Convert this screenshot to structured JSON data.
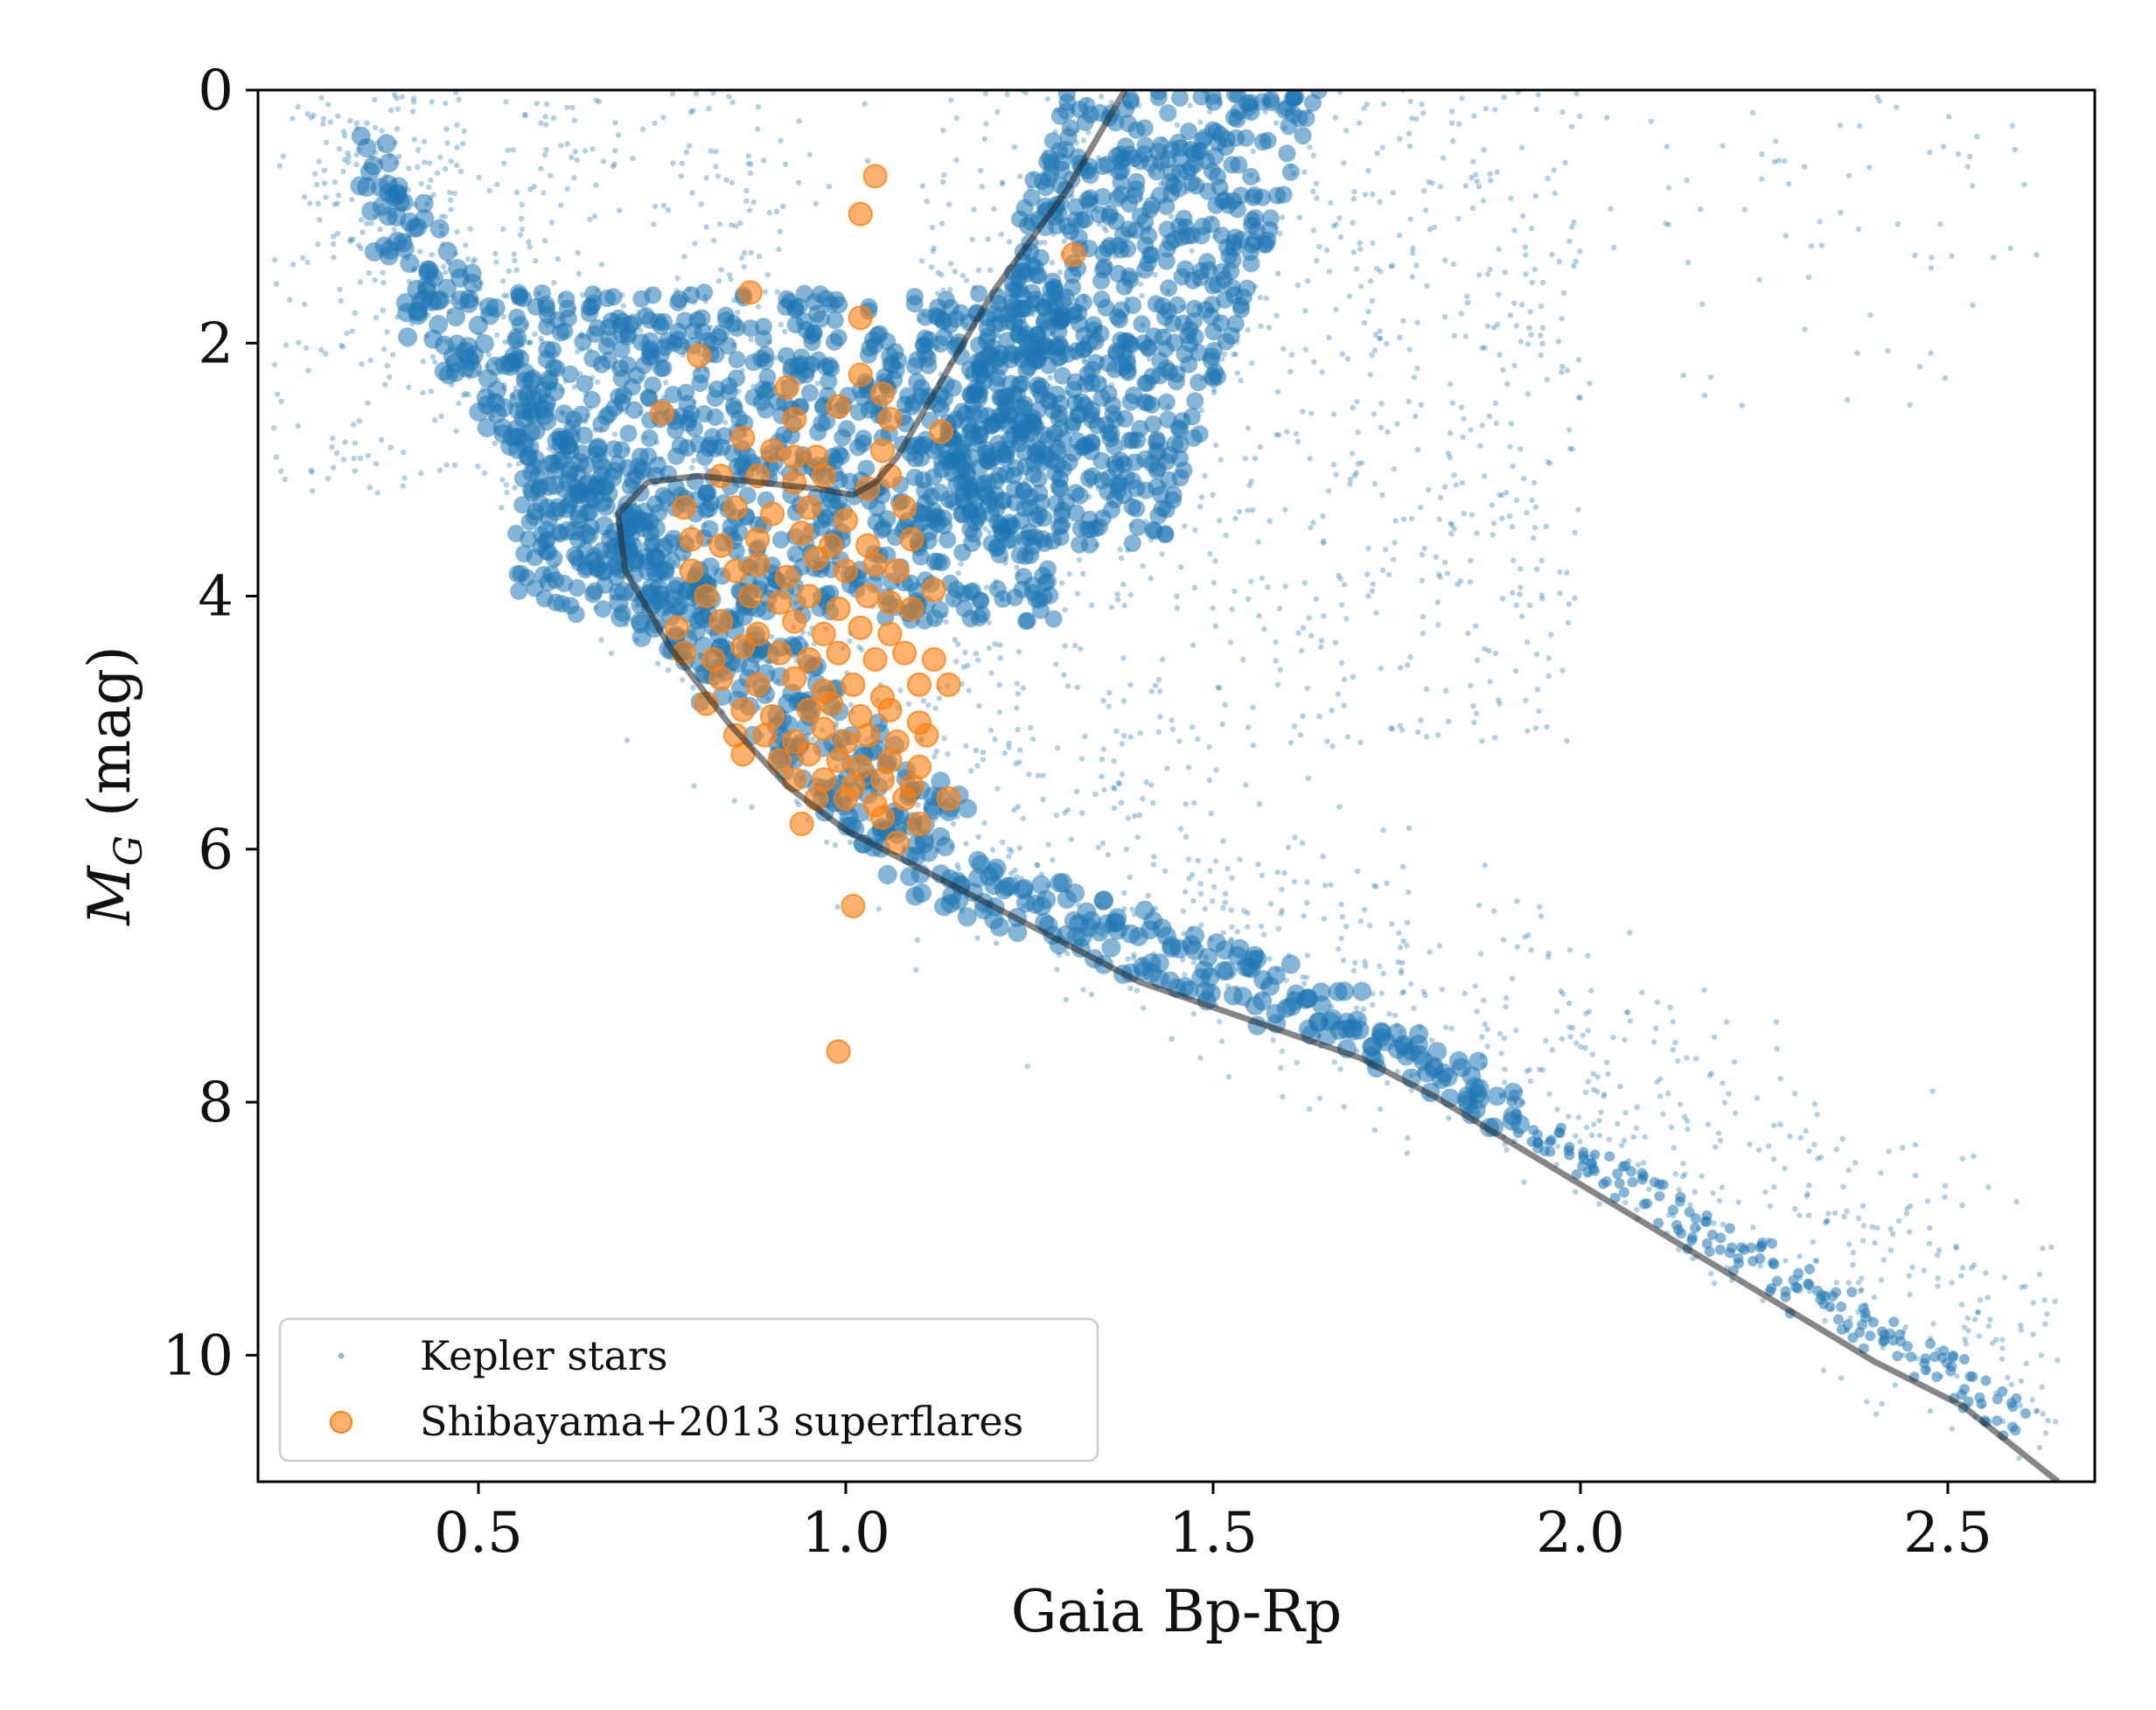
{
  "chart_data": {
    "type": "scatter",
    "xlabel": "Gaia Bp-Rp",
    "ylabel": "M_G (mag)",
    "xlim": [
      0.2,
      2.7
    ],
    "ylim": [
      11,
      0
    ],
    "x_ticks": [
      0.5,
      1.0,
      1.5,
      2.0,
      2.5
    ],
    "x_tick_labels": [
      "0.5",
      "1.0",
      "1.5",
      "2.0",
      "2.5"
    ],
    "y_ticks": [
      0,
      2,
      4,
      6,
      8,
      10
    ],
    "y_tick_labels": [
      "0",
      "2",
      "4",
      "6",
      "8",
      "10"
    ],
    "legend_position": "bottom-left",
    "colors": {
      "kepler": "#1f77b4",
      "superflares": "#ff7f0e",
      "isochrone": "#222222"
    },
    "series": [
      {
        "name": "Kepler stars",
        "kind": "dense-scatter",
        "approximate_point_count": 150000,
        "note": "main sequence and red giant branch of Kepler field stars"
      },
      {
        "name": "Shibayama+2013 superflares",
        "kind": "scatter",
        "points": [
          [
            1.04,
            0.68
          ],
          [
            1.02,
            0.98
          ],
          [
            1.31,
            1.3
          ],
          [
            0.87,
            1.6
          ],
          [
            1.02,
            1.8
          ],
          [
            0.8,
            2.1
          ],
          [
            0.75,
            2.55
          ],
          [
            0.93,
            2.6
          ],
          [
            0.92,
            2.35
          ],
          [
            0.99,
            2.5
          ],
          [
            1.02,
            2.25
          ],
          [
            1.05,
            2.4
          ],
          [
            1.06,
            2.6
          ],
          [
            1.13,
            2.7
          ],
          [
            0.86,
            2.75
          ],
          [
            0.9,
            2.85
          ],
          [
            0.93,
            2.9
          ],
          [
            0.96,
            2.9
          ],
          [
            1.05,
            2.85
          ],
          [
            0.83,
            3.05
          ],
          [
            0.88,
            3.05
          ],
          [
            0.93,
            3.1
          ],
          [
            0.97,
            3.05
          ],
          [
            1.03,
            3.15
          ],
          [
            1.06,
            3.05
          ],
          [
            0.78,
            3.3
          ],
          [
            0.85,
            3.3
          ],
          [
            0.9,
            3.35
          ],
          [
            0.95,
            3.3
          ],
          [
            1.0,
            3.4
          ],
          [
            1.08,
            3.3
          ],
          [
            0.79,
            3.55
          ],
          [
            0.83,
            3.6
          ],
          [
            0.88,
            3.55
          ],
          [
            0.94,
            3.5
          ],
          [
            0.98,
            3.6
          ],
          [
            1.03,
            3.6
          ],
          [
            1.09,
            3.55
          ],
          [
            0.79,
            3.8
          ],
          [
            0.85,
            3.8
          ],
          [
            0.88,
            3.75
          ],
          [
            0.92,
            3.85
          ],
          [
            0.96,
            3.7
          ],
          [
            1.0,
            3.8
          ],
          [
            1.04,
            3.75
          ],
          [
            1.07,
            3.8
          ],
          [
            1.12,
            3.95
          ],
          [
            0.81,
            4.0
          ],
          [
            0.87,
            4.0
          ],
          [
            0.91,
            4.05
          ],
          [
            0.95,
            4.0
          ],
          [
            0.99,
            4.1
          ],
          [
            1.03,
            4.0
          ],
          [
            1.06,
            4.05
          ],
          [
            1.09,
            4.1
          ],
          [
            0.77,
            4.25
          ],
          [
            0.83,
            4.2
          ],
          [
            0.88,
            4.3
          ],
          [
            0.93,
            4.2
          ],
          [
            0.97,
            4.3
          ],
          [
            1.02,
            4.25
          ],
          [
            1.06,
            4.3
          ],
          [
            0.78,
            4.45
          ],
          [
            0.82,
            4.5
          ],
          [
            0.86,
            4.4
          ],
          [
            0.91,
            4.45
          ],
          [
            0.95,
            4.5
          ],
          [
            0.99,
            4.45
          ],
          [
            1.04,
            4.5
          ],
          [
            1.08,
            4.45
          ],
          [
            1.12,
            4.5
          ],
          [
            0.83,
            4.65
          ],
          [
            0.88,
            4.7
          ],
          [
            0.93,
            4.65
          ],
          [
            0.97,
            4.75
          ],
          [
            1.01,
            4.7
          ],
          [
            1.05,
            4.8
          ],
          [
            1.1,
            4.7
          ],
          [
            1.14,
            4.7
          ],
          [
            0.81,
            4.85
          ],
          [
            0.86,
            4.9
          ],
          [
            0.9,
            4.95
          ],
          [
            0.95,
            4.9
          ],
          [
            0.98,
            4.85
          ],
          [
            1.02,
            4.95
          ],
          [
            1.06,
            4.9
          ],
          [
            1.1,
            5.0
          ],
          [
            0.85,
            5.1
          ],
          [
            0.89,
            5.1
          ],
          [
            0.93,
            5.15
          ],
          [
            0.97,
            5.05
          ],
          [
            1.0,
            5.15
          ],
          [
            1.03,
            5.1
          ],
          [
            1.07,
            5.15
          ],
          [
            1.11,
            5.1
          ],
          [
            0.86,
            5.25
          ],
          [
            0.91,
            5.3
          ],
          [
            0.95,
            5.25
          ],
          [
            0.99,
            5.3
          ],
          [
            1.02,
            5.35
          ],
          [
            1.06,
            5.3
          ],
          [
            1.1,
            5.35
          ],
          [
            0.93,
            5.45
          ],
          [
            0.97,
            5.45
          ],
          [
            1.01,
            5.5
          ],
          [
            1.05,
            5.45
          ],
          [
            1.09,
            5.5
          ],
          [
            0.96,
            5.6
          ],
          [
            1.0,
            5.6
          ],
          [
            1.04,
            5.65
          ],
          [
            1.08,
            5.6
          ],
          [
            1.14,
            5.6
          ],
          [
            0.94,
            5.8
          ],
          [
            1.05,
            5.75
          ],
          [
            1.1,
            5.8
          ],
          [
            1.07,
            5.95
          ],
          [
            1.01,
            6.45
          ],
          [
            0.99,
            7.6
          ]
        ]
      },
      {
        "name": "isochrone",
        "kind": "line",
        "points": [
          [
            1.38,
            0.0
          ],
          [
            1.3,
            0.8
          ],
          [
            1.2,
            1.6
          ],
          [
            1.12,
            2.4
          ],
          [
            1.07,
            2.9
          ],
          [
            1.04,
            3.1
          ],
          [
            1.01,
            3.2
          ],
          [
            0.96,
            3.15
          ],
          [
            0.88,
            3.1
          ],
          [
            0.8,
            3.05
          ],
          [
            0.73,
            3.1
          ],
          [
            0.69,
            3.35
          ],
          [
            0.7,
            3.8
          ],
          [
            0.76,
            4.4
          ],
          [
            0.84,
            5.0
          ],
          [
            0.92,
            5.5
          ],
          [
            1.0,
            5.85
          ],
          [
            1.1,
            6.15
          ],
          [
            1.2,
            6.45
          ],
          [
            1.3,
            6.75
          ],
          [
            1.4,
            7.05
          ],
          [
            1.55,
            7.35
          ],
          [
            1.7,
            7.65
          ],
          [
            1.8,
            7.95
          ],
          [
            1.9,
            8.3
          ],
          [
            2.0,
            8.65
          ],
          [
            2.1,
            9.0
          ],
          [
            2.2,
            9.35
          ],
          [
            2.3,
            9.7
          ],
          [
            2.4,
            10.05
          ],
          [
            2.52,
            10.4
          ],
          [
            2.65,
            11.0
          ]
        ]
      }
    ]
  }
}
